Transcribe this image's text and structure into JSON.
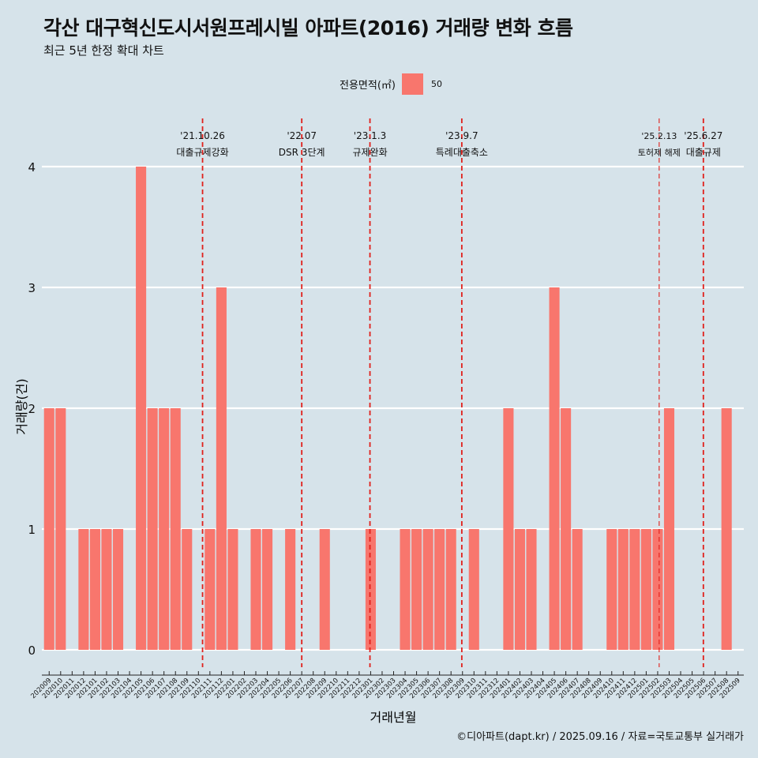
{
  "colors": {
    "background": "#d6e3ea",
    "bar": "#f8766d",
    "grid": "#ffffff",
    "event_line": "#e0201b",
    "text": "#111111"
  },
  "header": {
    "title": "각산 대구혁신도시서원프레시빌 아파트(2016) 거래량 변화 흐름",
    "subtitle": "최근 5년 한정 확대 차트"
  },
  "legend": {
    "title": "전용면적(㎡)",
    "items": [
      "50"
    ],
    "position": "top-center"
  },
  "caption": "©디아파트(dapt.kr) / 2025.09.16 / 자료=국토교통부 실거래가",
  "chart_data": {
    "type": "bar",
    "title": "각산 대구혁신도시서원프레시빌 아파트(2016) 거래량 변화 흐름",
    "subtitle": "최근 5년 한정 확대 차트",
    "xlabel": "거래년월",
    "ylabel": "거래량(건)",
    "ylim": [
      0,
      4
    ],
    "yticks": [
      0,
      1,
      2,
      3,
      4
    ],
    "grid": "horizontal",
    "categories": [
      "202009",
      "202010",
      "202011",
      "202012",
      "202101",
      "202102",
      "202103",
      "202104",
      "202105",
      "202106",
      "202107",
      "202108",
      "202109",
      "202110",
      "202111",
      "202112",
      "202201",
      "202202",
      "202203",
      "202204",
      "202205",
      "202206",
      "202207",
      "202208",
      "202209",
      "202210",
      "202211",
      "202212",
      "202301",
      "202302",
      "202303",
      "202304",
      "202305",
      "202306",
      "202307",
      "202308",
      "202309",
      "202310",
      "202311",
      "202312",
      "202401",
      "202402",
      "202403",
      "202404",
      "202405",
      "202406",
      "202407",
      "202408",
      "202409",
      "202410",
      "202411",
      "202412",
      "202501",
      "202502",
      "202503",
      "202504",
      "202505",
      "202506",
      "202507",
      "202508",
      "202509"
    ],
    "series": [
      {
        "name": "50",
        "values": [
          2,
          2,
          0,
          1,
          1,
          1,
          1,
          0,
          4,
          2,
          2,
          2,
          1,
          0,
          1,
          3,
          1,
          0,
          1,
          1,
          0,
          1,
          0,
          0,
          1,
          0,
          0,
          0,
          1,
          0,
          0,
          1,
          1,
          1,
          1,
          1,
          0,
          1,
          0,
          0,
          2,
          1,
          1,
          0,
          3,
          2,
          1,
          0,
          0,
          1,
          1,
          1,
          1,
          1,
          2,
          0,
          0,
          0,
          0,
          2,
          0
        ]
      }
    ],
    "events": [
      {
        "date": "'21.10.26",
        "label": "대출규제강화",
        "at": "202110",
        "offset": 0.36,
        "style": "thick"
      },
      {
        "date": "'22.07",
        "label": "DSR 3단계",
        "at": "202207",
        "offset": 0.0,
        "style": "thick"
      },
      {
        "date": "'23.1.3",
        "label": "규제완화",
        "at": "202301",
        "offset": -0.06,
        "style": "thick"
      },
      {
        "date": "'23.9.7",
        "label": "특례대출축소",
        "at": "202309",
        "offset": -0.06,
        "style": "thick"
      },
      {
        "date": "'25.2.13",
        "label": "토허제 해제",
        "at": "202502",
        "offset": 0.13,
        "style": "thin"
      },
      {
        "date": "'25.6.27",
        "label": "대출규제",
        "at": "202506",
        "offset": -0.02,
        "style": "thick"
      }
    ]
  }
}
